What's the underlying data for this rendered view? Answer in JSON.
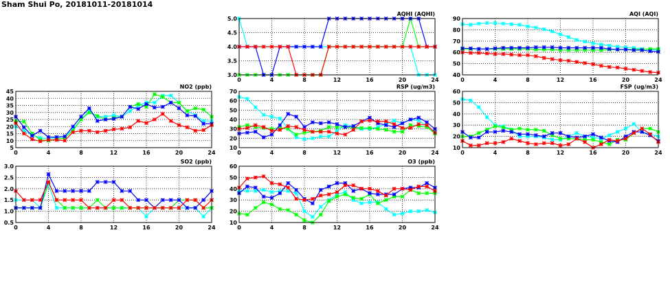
{
  "title": "Sham Shui Po, 20181011-20181014",
  "colors": {
    "series": [
      "#00ffff",
      "#00ff00",
      "#0000ff",
      "#ff0000"
    ],
    "grid": "#000000"
  },
  "chart_data": [
    {
      "type": "line",
      "title": "AQHI (AQHI)",
      "xlim": [
        0,
        24
      ],
      "xticks": [
        0,
        4,
        8,
        12,
        16,
        20,
        24
      ],
      "ylim": [
        3,
        5
      ],
      "yticks": [
        3.0,
        3.5,
        4.0,
        4.5,
        5.0
      ],
      "ydecimals": 1,
      "grid": true,
      "series": [
        {
          "name": "cyan",
          "values": [
            5,
            4,
            4,
            4,
            4,
            4,
            4,
            4,
            4,
            4,
            4,
            4,
            4,
            4,
            4,
            4,
            4,
            4,
            4,
            4,
            4,
            4,
            3,
            3,
            3
          ]
        },
        {
          "name": "green",
          "values": [
            3,
            3,
            3,
            3,
            3,
            3,
            3,
            3,
            3,
            3,
            3,
            4,
            4,
            4,
            4,
            4,
            4,
            4,
            4,
            4,
            4,
            5,
            4,
            4,
            4
          ]
        },
        {
          "name": "blue",
          "values": [
            4,
            4,
            4,
            3,
            3,
            4,
            4,
            4,
            4,
            4,
            4,
            5,
            5,
            5,
            5,
            5,
            5,
            5,
            5,
            5,
            5,
            5,
            5,
            4,
            4
          ]
        },
        {
          "name": "red",
          "values": [
            4,
            4,
            4,
            4,
            4,
            4,
            4,
            3,
            3,
            3,
            3,
            4,
            4,
            4,
            4,
            4,
            4,
            4,
            4,
            4,
            4,
            4,
            4,
            4,
            4
          ]
        }
      ]
    },
    {
      "type": "line",
      "title": "AQI (AQI)",
      "xlim": [
        0,
        24
      ],
      "xticks": [
        0,
        4,
        8,
        12,
        16,
        20,
        24
      ],
      "ylim": [
        40,
        90
      ],
      "yticks": [
        40,
        50,
        60,
        70,
        80,
        90
      ],
      "ydecimals": 0,
      "grid": true,
      "series": [
        {
          "name": "cyan",
          "values": [
            85,
            84.5,
            85.5,
            86,
            86,
            85.5,
            85,
            84.5,
            83,
            82,
            80.5,
            78.5,
            76,
            73.5,
            71,
            69.5,
            68,
            67,
            66,
            65,
            64.5,
            64,
            63,
            62.5,
            62
          ]
        },
        {
          "name": "green",
          "values": [
            63,
            63,
            63,
            63,
            63,
            63,
            63,
            63,
            63,
            62.5,
            62.5,
            62.5,
            62,
            62,
            62,
            62,
            62,
            62,
            62.5,
            62.5,
            62.5,
            62.5,
            62.5,
            63,
            63
          ]
        },
        {
          "name": "blue",
          "values": [
            63.5,
            63.5,
            63,
            63,
            63.5,
            64,
            64,
            64,
            64,
            64.5,
            64.5,
            64.5,
            64,
            64,
            64,
            64,
            64,
            64,
            63,
            62.5,
            62.5,
            62,
            62,
            61,
            60.5
          ]
        },
        {
          "name": "red",
          "values": [
            60,
            59.5,
            59.5,
            59,
            58.5,
            58.5,
            58,
            57.5,
            57.5,
            56.5,
            55,
            54,
            53,
            52.5,
            51.5,
            50.5,
            49.5,
            48,
            47,
            46.5,
            45.5,
            44.5,
            43.5,
            42.5,
            42
          ]
        }
      ]
    },
    {
      "type": "line",
      "title": "NO2 (ppb)",
      "xlim": [
        0,
        24
      ],
      "xticks": [
        0,
        4,
        8,
        12,
        16,
        20,
        24
      ],
      "ylim": [
        5,
        45
      ],
      "yticks": [
        5,
        10,
        15,
        20,
        25,
        30,
        35,
        40,
        45
      ],
      "ydecimals": 0,
      "grid": true,
      "series": [
        {
          "name": "cyan",
          "values": [
            20,
            17,
            14,
            12,
            11.5,
            12,
            13,
            18,
            25,
            31,
            27,
            27,
            28,
            27,
            31,
            35,
            37,
            37,
            42,
            42,
            37,
            31,
            28,
            24,
            24
          ]
        },
        {
          "name": "green",
          "values": [
            24,
            23.5,
            15,
            10.5,
            10,
            11,
            12,
            17,
            25,
            30,
            27.5,
            25,
            26,
            27,
            34,
            36,
            34,
            43,
            41,
            37,
            37,
            31,
            33,
            32,
            27
          ]
        },
        {
          "name": "blue",
          "values": [
            27,
            19.5,
            13.5,
            17,
            12.5,
            12.5,
            13,
            20,
            27,
            33,
            24,
            25,
            25.5,
            27,
            34,
            32.5,
            36,
            33.5,
            34,
            37,
            33,
            28,
            27.5,
            22,
            22
          ]
        },
        {
          "name": "red",
          "values": [
            22.5,
            15,
            11,
            9.5,
            10.5,
            10.5,
            10,
            16,
            17,
            17,
            16,
            17,
            18,
            18.5,
            19.5,
            24,
            22.5,
            25,
            29,
            24,
            21,
            19.5,
            17,
            17.5,
            21
          ]
        }
      ]
    },
    {
      "type": "line",
      "title": "RSP (ug/m3)",
      "xlim": [
        0,
        24
      ],
      "xticks": [
        0,
        4,
        8,
        12,
        16,
        20,
        24
      ],
      "ylim": [
        10,
        70
      ],
      "yticks": [
        10,
        20,
        30,
        40,
        50,
        60,
        70
      ],
      "ydecimals": 0,
      "grid": true,
      "series": [
        {
          "name": "cyan",
          "values": [
            64,
            62,
            53,
            45,
            43,
            41,
            30,
            21,
            19,
            20,
            22,
            22,
            28,
            34,
            33,
            30,
            30,
            32,
            35,
            39,
            36,
            40,
            39,
            33,
            27
          ]
        },
        {
          "name": "green",
          "values": [
            32,
            34,
            32,
            31,
            30,
            31,
            30,
            24,
            26,
            27,
            28,
            32,
            32,
            32,
            31,
            31,
            31,
            30,
            29,
            27,
            27,
            34,
            33,
            32,
            25
          ]
        },
        {
          "name": "blue",
          "values": [
            25,
            26,
            27,
            21,
            24,
            34,
            46,
            43,
            32,
            37,
            36,
            37,
            35,
            32,
            33,
            38,
            42,
            36,
            34,
            32,
            36,
            40,
            42,
            37,
            30
          ]
        },
        {
          "name": "red",
          "values": [
            30,
            31,
            34,
            32,
            28,
            29,
            33,
            32,
            29,
            27,
            27,
            27,
            25,
            24,
            29,
            38,
            39,
            38,
            38,
            35,
            31,
            31,
            35,
            34,
            26
          ]
        }
      ]
    },
    {
      "type": "line",
      "title": "FSP (ug/m3)",
      "xlim": [
        0,
        24
      ],
      "xticks": [
        0,
        4,
        8,
        12,
        16,
        20,
        24
      ],
      "ylim": [
        10,
        60
      ],
      "yticks": [
        10,
        20,
        30,
        40,
        50,
        60
      ],
      "ydecimals": 0,
      "grid": true,
      "series": [
        {
          "name": "cyan",
          "values": [
            53,
            52,
            46,
            37,
            30,
            29,
            26,
            20,
            20,
            20,
            19,
            17,
            17,
            20,
            23,
            20,
            19,
            18,
            21,
            24,
            27,
            31,
            24,
            22,
            20
          ]
        },
        {
          "name": "green",
          "values": [
            20,
            20,
            23,
            26,
            29,
            28,
            26,
            27,
            26,
            26,
            25,
            21,
            18,
            18,
            18,
            17,
            17,
            15,
            13,
            17,
            17,
            23,
            27,
            27,
            24
          ]
        },
        {
          "name": "blue",
          "values": [
            24,
            19,
            19,
            24,
            24,
            25,
            24,
            22,
            22,
            21,
            20,
            23,
            23,
            20,
            19,
            20,
            22,
            19,
            16,
            15,
            20,
            24,
            24,
            21,
            16
          ]
        },
        {
          "name": "red",
          "values": [
            16,
            12,
            12,
            14,
            14,
            15,
            18,
            16,
            14,
            13,
            14,
            14,
            12,
            13,
            18,
            15,
            10,
            13,
            17,
            16,
            18,
            23,
            27,
            22,
            15
          ]
        }
      ]
    },
    {
      "type": "line",
      "title": "SO2 (ppb)",
      "xlim": [
        0,
        24
      ],
      "xticks": [
        0,
        4,
        8,
        12,
        16,
        20,
        24
      ],
      "ylim": [
        0.5,
        3
      ],
      "yticks": [
        0.5,
        1.0,
        1.5,
        2.0,
        2.5,
        3.0
      ],
      "ydecimals": 1,
      "grid": true,
      "series": [
        {
          "name": "cyan",
          "values": [
            1.5,
            1.5,
            1.5,
            1.15,
            2.2,
            1.15,
            1.15,
            1.15,
            1.15,
            1.15,
            1.15,
            1.15,
            1.15,
            1.15,
            1.15,
            1.15,
            0.77,
            1.15,
            1.15,
            1.15,
            1.15,
            1.15,
            1.15,
            0.77,
            1.15
          ]
        },
        {
          "name": "green",
          "values": [
            1.15,
            1.15,
            1.15,
            1.15,
            2.3,
            1.5,
            1.15,
            1.15,
            1.15,
            1.15,
            1.5,
            1.15,
            1.15,
            1.15,
            1.15,
            1.15,
            1.15,
            1.15,
            1.15,
            1.15,
            1.5,
            1.5,
            1.5,
            1.15,
            1.15
          ]
        },
        {
          "name": "blue",
          "values": [
            1.15,
            1.15,
            1.15,
            1.15,
            2.65,
            1.9,
            1.9,
            1.9,
            1.9,
            1.9,
            2.3,
            2.3,
            2.3,
            1.9,
            1.9,
            1.5,
            1.5,
            1.15,
            1.5,
            1.5,
            1.5,
            1.15,
            1.15,
            1.5,
            1.9
          ]
        },
        {
          "name": "red",
          "values": [
            1.9,
            1.5,
            1.5,
            1.5,
            2.3,
            1.5,
            1.5,
            1.5,
            1.5,
            1.15,
            1.15,
            1.15,
            1.5,
            1.5,
            1.15,
            1.15,
            1.15,
            1.15,
            1.15,
            1.15,
            1.15,
            1.5,
            1.5,
            1.15,
            1.5
          ]
        }
      ]
    },
    {
      "type": "line",
      "title": "O3 (ppb)",
      "xlim": [
        0,
        24
      ],
      "xticks": [
        0,
        4,
        8,
        12,
        16,
        20,
        24
      ],
      "ylim": [
        10,
        60
      ],
      "yticks": [
        10,
        20,
        30,
        40,
        50,
        60
      ],
      "ydecimals": 0,
      "grid": true,
      "series": [
        {
          "name": "cyan",
          "values": [
            38,
            38,
            38,
            39,
            37,
            38,
            38,
            36,
            20,
            15,
            24,
            30,
            35,
            37,
            30,
            27,
            28,
            28,
            22,
            17,
            18,
            20,
            20,
            21,
            19
          ]
        },
        {
          "name": "green",
          "values": [
            18,
            17,
            23,
            28,
            26,
            22,
            21,
            17,
            12,
            10,
            17,
            29,
            33,
            35,
            32,
            31,
            35,
            27,
            30,
            33,
            33,
            39,
            36,
            36,
            36
          ]
        },
        {
          "name": "blue",
          "values": [
            36,
            42,
            41,
            33,
            32,
            36,
            45,
            39,
            31,
            27,
            39,
            42,
            45,
            45,
            38,
            40,
            36,
            35,
            35,
            35,
            40,
            41,
            41,
            45,
            41
          ]
        },
        {
          "name": "red",
          "values": [
            41,
            49,
            50,
            51,
            45,
            44,
            41,
            31,
            30,
            31,
            34,
            35,
            37,
            43,
            43,
            40,
            40,
            38,
            34,
            40,
            40,
            39,
            42,
            42,
            38
          ]
        }
      ]
    }
  ]
}
